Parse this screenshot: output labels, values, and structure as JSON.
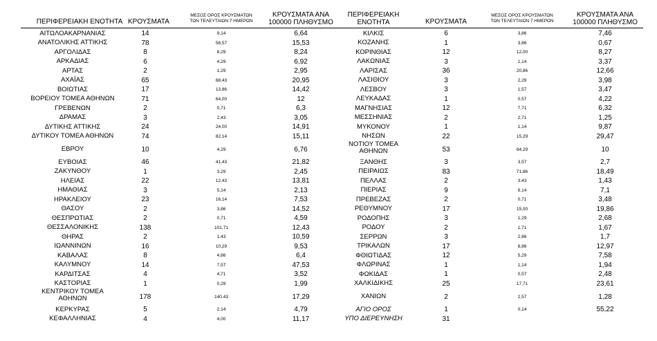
{
  "headers": {
    "region": "ΠΕΡΙΦΕΡΕΙΑΚΗ ΕΝΟΤΗΤΑ",
    "region_right_1": "ΠΕΡΙΦΕΡΕΙΑΚΗ",
    "region_right_2": "ΕΝΟΤΗΤΑ",
    "cases": "ΚΡΟΥΣΜΑΤΑ",
    "avg_1": "ΜΕΣΟΣ ΟΡΟΣ ΚΡΟΥΣΜΑΤΩΝ",
    "avg_2": "ΤΩΝ ΤΕΛΕΥΤΑΙΩΝ 7 ΗΜΕΡΩΝ",
    "per_1": "ΚΡΟΥΣΜΑΤΑ ΑΝΑ",
    "per_2": "100000 ΠΛΗΘΥΣΜΟ"
  },
  "left": [
    {
      "name": "ΑΙΤΩΛΟΑΚΑΡΝΑΝΙΑΣ",
      "cases": "14",
      "avg": "9,14",
      "per": "6,64"
    },
    {
      "name": "ΑΝΑΤΟΛΙΚΗΣ ΑΤΤΙΚΗΣ",
      "cases": "78",
      "avg": "58,57",
      "per": "15,53"
    },
    {
      "name": "ΑΡΓΟΛΙΔΑΣ",
      "cases": "8",
      "avg": "8,29",
      "per": "8,24"
    },
    {
      "name": "ΑΡΚΑΔΙΑΣ",
      "cases": "6",
      "avg": "4,29",
      "per": "6,92"
    },
    {
      "name": "ΑΡΤΑΣ",
      "cases": "2",
      "avg": "1,29",
      "per": "2,95"
    },
    {
      "name": "ΑΧΑΪΑΣ",
      "cases": "65",
      "avg": "68,43",
      "per": "20,95"
    },
    {
      "name": "ΒΟΙΩΤΙΑΣ",
      "cases": "17",
      "avg": "13,86",
      "per": "14,42"
    },
    {
      "name": "ΒΟΡΕΙΟΥ ΤΟΜΕΑ ΑΘΗΝΩΝ",
      "cases": "71",
      "avg": "64,00",
      "per": "12"
    },
    {
      "name": "ΓΡΕΒΕΝΩΝ",
      "cases": "2",
      "avg": "0,71",
      "per": "6,3"
    },
    {
      "name": "ΔΡΑΜΑΣ",
      "cases": "3",
      "avg": "2,43",
      "per": "3,05"
    },
    {
      "name": "ΔΥΤΙΚΗΣ ΑΤΤΙΚΗΣ",
      "cases": "24",
      "avg": "24,00",
      "per": "14,91"
    },
    {
      "name": "ΔΥΤΙΚΟΥ ΤΟΜΕΑ ΑΘΗΝΩΝ",
      "cases": "74",
      "avg": "82,14",
      "per": "15,11"
    },
    {
      "name": "ΕΒΡΟΥ",
      "cases": "10",
      "avg": "4,29",
      "per": "6,76"
    },
    {
      "name": "ΕΥΒΟΙΑΣ",
      "cases": "46",
      "avg": "41,43",
      "per": "21,82"
    },
    {
      "name": "ΖΑΚΥΝΘΟΥ",
      "cases": "1",
      "avg": "3,29",
      "per": "2,45"
    },
    {
      "name": "ΗΛΕΙΑΣ",
      "cases": "22",
      "avg": "12,43",
      "per": "13,81"
    },
    {
      "name": "ΗΜΑΘΙΑΣ",
      "cases": "3",
      "avg": "5,14",
      "per": "2,13"
    },
    {
      "name": "ΗΡΑΚΛΕΙΟΥ",
      "cases": "23",
      "avg": "16,14",
      "per": "7,53"
    },
    {
      "name": "ΘΑΣΟΥ",
      "cases": "2",
      "avg": "3,86",
      "per": "14,52"
    },
    {
      "name": "ΘΕΣΠΡΩΤΙΑΣ",
      "cases": "2",
      "avg": "0,71",
      "per": "4,59"
    },
    {
      "name": "ΘΕΣΣΑΛΟΝΙΚΗΣ",
      "cases": "138",
      "avg": "101,71",
      "per": "12,43"
    },
    {
      "name": "ΘΗΡΑΣ",
      "cases": "2",
      "avg": "1,43",
      "per": "10,59"
    },
    {
      "name": "ΙΩΑΝΝΙΝΩΝ",
      "cases": "16",
      "avg": "10,29",
      "per": "9,53"
    },
    {
      "name": "ΚΑΒΑΛΑΣ",
      "cases": "8",
      "avg": "4,86",
      "per": "6,4"
    },
    {
      "name": "ΚΑΛΥΜΝΟΥ",
      "cases": "14",
      "avg": "7,57",
      "per": "47,53"
    },
    {
      "name": "ΚΑΡΔΙΤΣΑΣ",
      "cases": "4",
      "avg": "4,71",
      "per": "3,52"
    },
    {
      "name": "ΚΑΣΤΟΡΙΑΣ",
      "cases": "1",
      "avg": "0,29",
      "per": "1,99"
    },
    {
      "name": "ΚΕΝΤΡΙΚΟΥ ΤΟΜΕΑ",
      "name2": "ΑΘΗΝΩΝ",
      "cases": "178",
      "avg": "140,43",
      "per": "17,29"
    },
    {
      "name": "ΚΕΡΚΥΡΑΣ",
      "cases": "5",
      "avg": "2,14",
      "per": "4,79"
    },
    {
      "name": "ΚΕΦΑΛΛΗΝΙΑΣ",
      "cases": "4",
      "avg": "4,00",
      "per": "11,17"
    }
  ],
  "right": [
    {
      "name": "ΚΙΛΚΙΣ",
      "cases": "6",
      "avg": "3,86",
      "per": "7,46"
    },
    {
      "name": "ΚΟΖΑΝΗΣ",
      "cases": "1",
      "avg": "3,86",
      "per": "0,67"
    },
    {
      "name": "ΚΟΡΙΝΘΙΑΣ",
      "cases": "12",
      "avg": "12,00",
      "per": "8,27"
    },
    {
      "name": "ΛΑΚΩΝΙΑΣ",
      "cases": "3",
      "avg": "1,14",
      "per": "3,37"
    },
    {
      "name": "ΛΑΡΙΣΑΣ",
      "cases": "36",
      "avg": "20,86",
      "per": "12,66"
    },
    {
      "name": "ΛΑΣΙΘΙΟΥ",
      "cases": "3",
      "avg": "2,29",
      "per": "3,98"
    },
    {
      "name": "ΛΕΣΒΟΥ",
      "cases": "3",
      "avg": "1,57",
      "per": "3,47"
    },
    {
      "name": "ΛΕΥΚΑΔΑΣ",
      "cases": "1",
      "avg": "0,57",
      "per": "4,22"
    },
    {
      "name": "ΜΑΓΝΗΣΙΑΣ",
      "cases": "12",
      "avg": "7,71",
      "per": "6,32"
    },
    {
      "name": "ΜΕΣΣΗΝΙΑΣ",
      "cases": "2",
      "avg": "2,71",
      "per": "1,25"
    },
    {
      "name": "ΜΥΚΟΝΟΥ",
      "cases": "1",
      "avg": "1,14",
      "per": "9,87"
    },
    {
      "name": "ΝΗΣΩΝ",
      "cases": "22",
      "avg": "15,29",
      "per": "29,47"
    },
    {
      "name": "ΝΟΤΙΟΥ ΤΟΜΕΑ",
      "name2": "ΑΘΗΝΩΝ",
      "cases": "53",
      "avg": "64,29",
      "per": "10"
    },
    {
      "name": "ΞΑΝΘΗΣ",
      "cases": "3",
      "avg": "3,57",
      "per": "2,7"
    },
    {
      "name": "ΠΕΙΡΑΙΩΣ",
      "cases": "83",
      "avg": "71,86",
      "per": "18,49"
    },
    {
      "name": "ΠΕΛΛΑΣ",
      "cases": "2",
      "avg": "3,43",
      "per": "1,43"
    },
    {
      "name": "ΠΙΕΡΙΑΣ",
      "cases": "9",
      "avg": "9,14",
      "per": "7,1"
    },
    {
      "name": "ΠΡΕΒΕΖΑΣ",
      "cases": "2",
      "avg": "0,71",
      "per": "3,48"
    },
    {
      "name": "ΡΕΘΥΜΝΟΥ",
      "cases": "17",
      "avg": "15,00",
      "per": "19,86"
    },
    {
      "name": "ΡΟΔΟΠΗΣ",
      "cases": "3",
      "avg": "1,29",
      "per": "2,68"
    },
    {
      "name": "ΡΟΔΟΥ",
      "cases": "2",
      "avg": "1,71",
      "per": "1,67"
    },
    {
      "name": "ΣΕΡΡΩΝ",
      "cases": "3",
      "avg": "2,86",
      "per": "1,7"
    },
    {
      "name": "ΤΡΙΚΑΛΩΝ",
      "cases": "17",
      "avg": "8,86",
      "per": "12,97"
    },
    {
      "name": "ΦΘΙΩΤΙΔΑΣ",
      "cases": "12",
      "avg": "5,29",
      "per": "7,58"
    },
    {
      "name": "ΦΛΩΡΙΝΑΣ",
      "cases": "1",
      "avg": "1,14",
      "per": "1,94"
    },
    {
      "name": "ΦΩΚΙΔΑΣ",
      "cases": "1",
      "avg": "0,57",
      "per": "2,48"
    },
    {
      "name": "ΧΑΛΚΙΔΙΚΗΣ",
      "cases": "25",
      "avg": "17,71",
      "per": "23,61"
    },
    {
      "name": "ΧΑΝΙΩΝ",
      "cases": "2",
      "avg": "2,57",
      "per": "1,28"
    },
    {
      "name": "ΑΓΙΟ ΟΡΟΣ",
      "cases": "1",
      "avg": "0,14",
      "per": "55,22",
      "italic": true
    },
    {
      "name": "ΥΠΟ ΔΙΕΡΕΥΝΗΣΗ",
      "cases": "31",
      "avg": "",
      "per": "",
      "italic": true
    }
  ]
}
